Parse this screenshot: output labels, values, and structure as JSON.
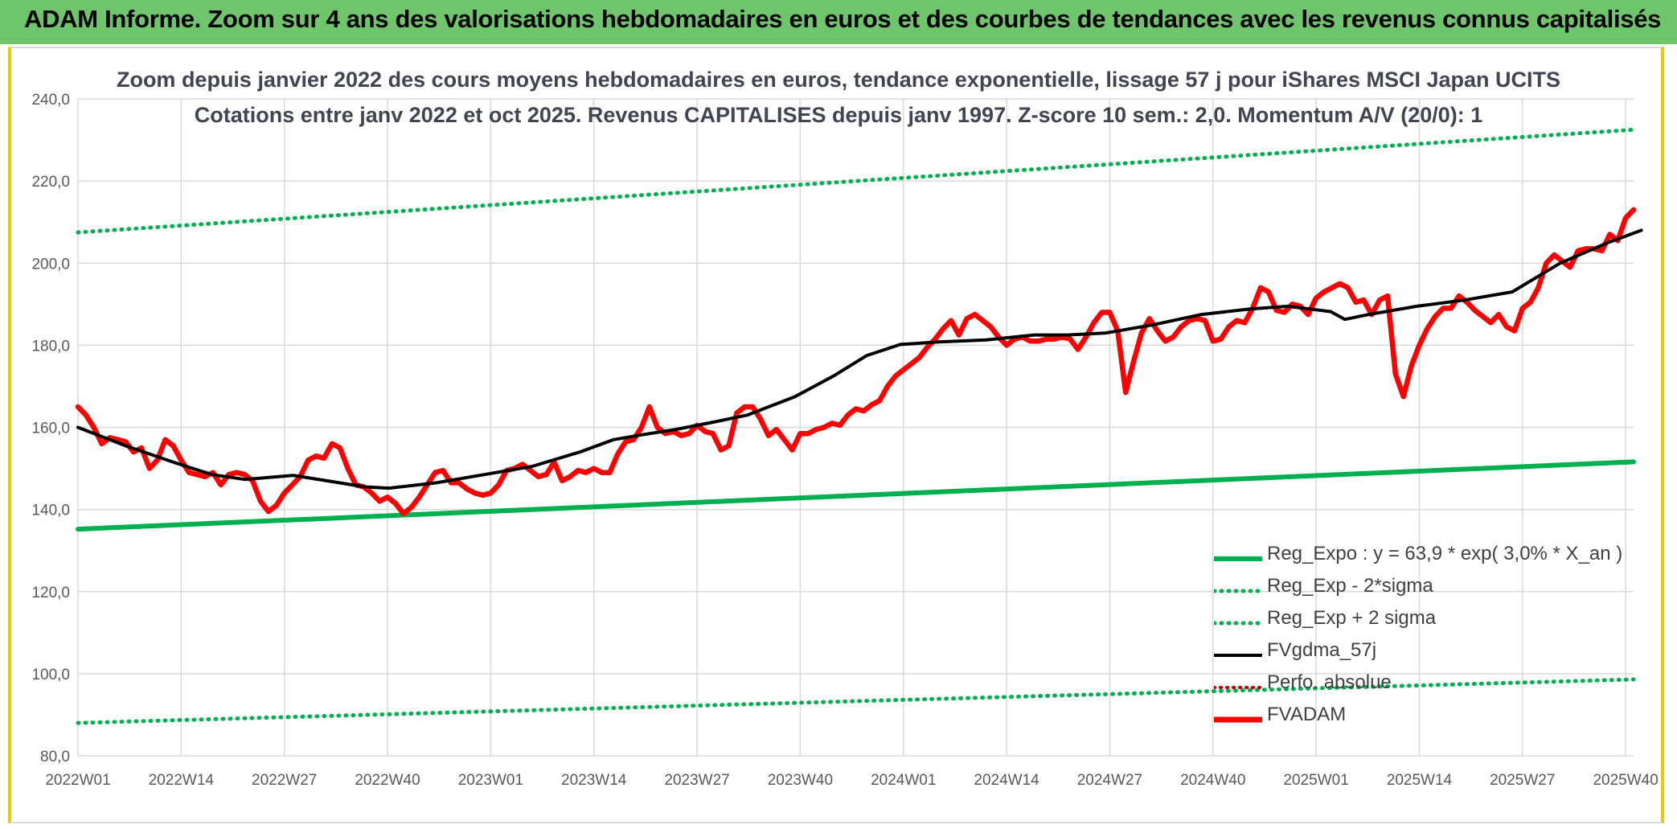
{
  "header": {
    "title": "ADAM Informe. Zoom sur 4 ans des valorisations hebdomadaires en euros et des courbes de tendances avec les revenus connus capitalisés"
  },
  "chart_data": {
    "type": "line",
    "title": "Zoom depuis janvier 2022 des cours moyens hebdomadaires en euros, tendance exponentielle, lissage 57 j pour iShares MSCI Japan UCITS",
    "subtitle": "Cotations entre janv 2022 et oct 2025. Revenus CAPITALISES depuis janv 1997. Z-score 10 sem.: 2,0. Momentum A/V (20/0): 1",
    "ylim": [
      80,
      240
    ],
    "yticks": [
      "80,0",
      "100,0",
      "120,0",
      "140,0",
      "160,0",
      "180,0",
      "200,0",
      "220,0",
      "240,0"
    ],
    "xticks": [
      "2022W01",
      "2022W14",
      "2022W27",
      "2022W40",
      "2023W01",
      "2023W14",
      "2023W27",
      "2023W40",
      "2024W01",
      "2024W14",
      "2024W27",
      "2024W40",
      "2025W01",
      "2025W14",
      "2025W27",
      "2025W40"
    ],
    "n_weeks": 197,
    "grid": "horizontal",
    "legend_position": "bottom-right",
    "series": [
      {
        "name": "Reg_Expo : y = 63,9 * exp( 3,0% *  X_an )",
        "color": "#00b050",
        "style": "solid-thick",
        "anchors": [
          [
            0,
            135.2
          ],
          [
            196,
            151.6
          ]
        ]
      },
      {
        "name": "Reg_Exp - 2*sigma",
        "color": "#00b050",
        "style": "dotted",
        "anchors": [
          [
            0,
            88.0
          ],
          [
            196,
            98.6
          ]
        ]
      },
      {
        "name": "Reg_Exp + 2 sigma",
        "color": "#00b050",
        "style": "dotted",
        "anchors": [
          [
            0,
            207.5
          ],
          [
            196,
            232.5
          ]
        ]
      },
      {
        "name": "FVgdma_57j",
        "color": "#000000",
        "style": "solid",
        "anchors": [
          [
            0,
            160
          ],
          [
            10,
            155.5
          ],
          [
            20,
            151.5
          ],
          [
            28,
            148.5
          ],
          [
            35,
            147.3
          ],
          [
            45,
            148.3
          ],
          [
            52,
            147
          ],
          [
            60,
            145.5
          ],
          [
            65,
            145.2
          ],
          [
            75,
            146.5
          ],
          [
            85,
            148.5
          ],
          [
            95,
            150.5
          ],
          [
            105,
            154
          ],
          [
            112,
            157
          ],
          [
            118,
            158.2
          ],
          [
            125,
            159.5
          ],
          [
            133,
            161.3
          ],
          [
            140,
            163
          ],
          [
            150,
            167.5
          ],
          [
            158,
            172.5
          ],
          [
            165,
            177.5
          ],
          [
            172,
            180.2
          ],
          [
            180,
            180.8
          ],
          [
            190,
            181.3
          ],
          [
            200,
            182.5
          ],
          [
            207,
            182.5
          ],
          [
            215,
            183
          ],
          [
            225,
            185
          ],
          [
            235,
            187.5
          ],
          [
            245,
            188.8
          ],
          [
            253,
            189.5
          ],
          [
            262,
            188.2
          ],
          [
            265,
            186.3
          ],
          [
            270,
            187.5
          ],
          [
            280,
            189.5
          ],
          [
            290,
            191
          ],
          [
            300,
            193
          ],
          [
            310,
            200
          ],
          [
            320,
            205
          ],
          [
            327,
            208
          ]
        ],
        "x_unit_scale": 0.6024
      },
      {
        "name": "Perfo. absolue",
        "color": "#c00000",
        "style": "dotted",
        "anchors": []
      },
      {
        "name": "FVADAM",
        "color": "#ff0000",
        "style": "solid-thick",
        "values_by_index": [
          165,
          163,
          160,
          156,
          157.5,
          157,
          156.5,
          154,
          155,
          150,
          152,
          157,
          155.5,
          152,
          149,
          148.5,
          148,
          149,
          146,
          148.5,
          149,
          148.5,
          147,
          142,
          139.5,
          141,
          144,
          146,
          148,
          152,
          153,
          152.5,
          156,
          155,
          150,
          146,
          145.5,
          144,
          142,
          143,
          141.5,
          139,
          140.5,
          143,
          146,
          149,
          149.5,
          146.5,
          146.5,
          145,
          144,
          143.5,
          144,
          146,
          149.5,
          150,
          151,
          149.5,
          148,
          148.5,
          151.5,
          147,
          148,
          149.5,
          149,
          150,
          149,
          149,
          153.5,
          156.5,
          157,
          160,
          165,
          160,
          158.5,
          159,
          158,
          158.5,
          160.5,
          159,
          158.5,
          154.5,
          155.5,
          163.5,
          165,
          165,
          162,
          158,
          159.5,
          157,
          154.5,
          158.5,
          158.5,
          159.5,
          160,
          161,
          160.5,
          163,
          164.5,
          164,
          165.5,
          166.5,
          170,
          172.5,
          174,
          175.5,
          177,
          179.5,
          181.5,
          184,
          186,
          182.5,
          186.5,
          187.5,
          186,
          184.5,
          182,
          180,
          181.5,
          182,
          181,
          181,
          181.5,
          181.5,
          182,
          181.5,
          179,
          182,
          185.5,
          188,
          188,
          183.5,
          168.5,
          176,
          183,
          186.5,
          183.5,
          181,
          182,
          184.5,
          186,
          186.5,
          186,
          181,
          181.5,
          184.5,
          186,
          185.5,
          189,
          194,
          193,
          188.5,
          188,
          190,
          189.5,
          187.5,
          191.5,
          193,
          194,
          195,
          194,
          190.5,
          191,
          187.5,
          191,
          192,
          173,
          167.5,
          175,
          180,
          184,
          187,
          189,
          189,
          192,
          190.5,
          188.5,
          187,
          185.5,
          187.5,
          184.5,
          183.5,
          189,
          190.5,
          194,
          200,
          202,
          200.5,
          199,
          203,
          203.5,
          203.5,
          203,
          207,
          205.5,
          211,
          213
        ]
      }
    ]
  },
  "legend": {
    "items": [
      {
        "label": "Reg_Expo : y = 63,9 * exp( 3,0% *  X_an )"
      },
      {
        "label": "Reg_Exp - 2*sigma"
      },
      {
        "label": "Reg_Exp + 2 sigma"
      },
      {
        "label": "FVgdma_57j"
      },
      {
        "label": "Perfo. absolue"
      },
      {
        "label": "FVADAM"
      }
    ]
  }
}
